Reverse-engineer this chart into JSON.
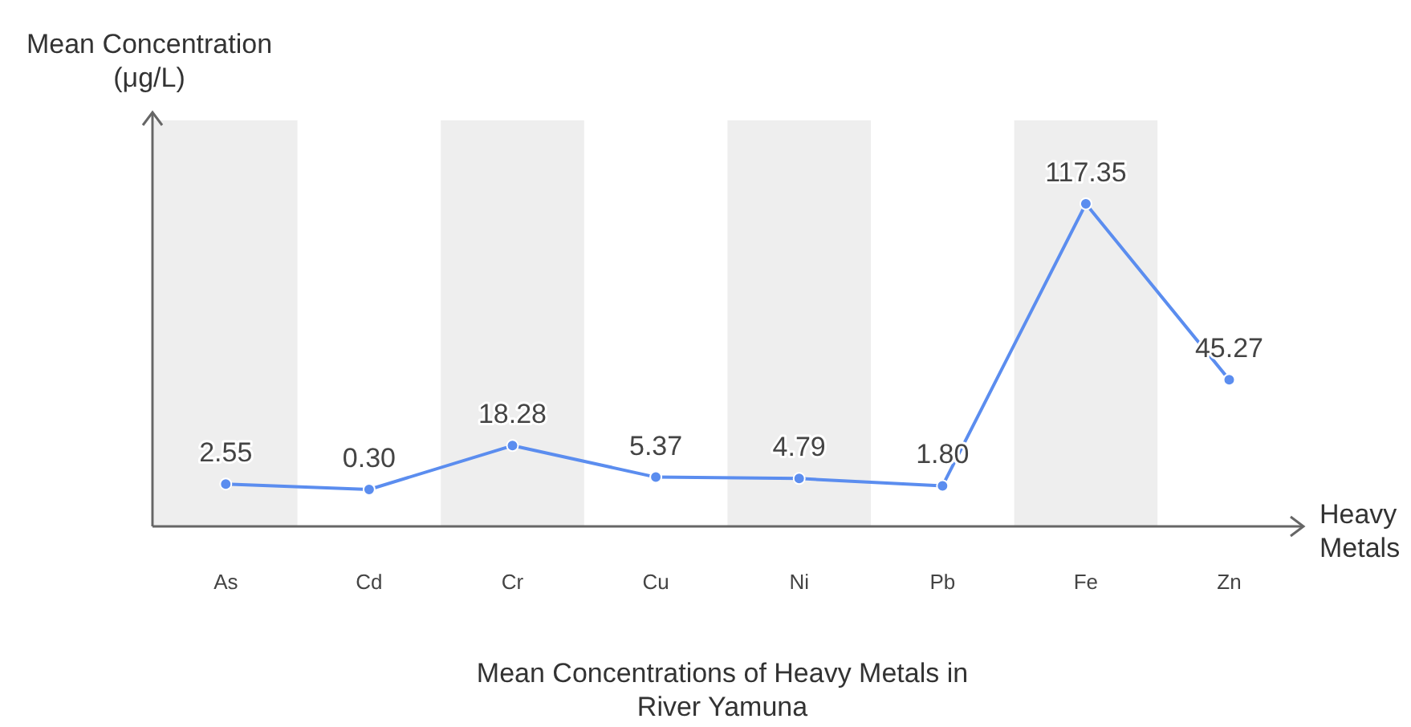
{
  "chart_data": {
    "type": "line",
    "title": "Mean Concentrations of Heavy Metals in River Yamuna",
    "xlabel": "Heavy Metals",
    "ylabel": "Mean Concentration (μg/L)",
    "categories": [
      "As",
      "Cd",
      "Cr",
      "Cu",
      "Ni",
      "Pb",
      "Fe",
      "Zn"
    ],
    "series": [
      {
        "color": "#5b8def",
        "values": [
          2.55,
          0.3,
          18.28,
          5.37,
          4.79,
          1.8,
          117.35,
          45.27
        ],
        "value_labels": [
          "2.55",
          "0.30",
          "18.28",
          "5.37",
          "4.79",
          "1.80",
          "117.35",
          "45.27"
        ]
      }
    ],
    "marker": "circle"
  }
}
